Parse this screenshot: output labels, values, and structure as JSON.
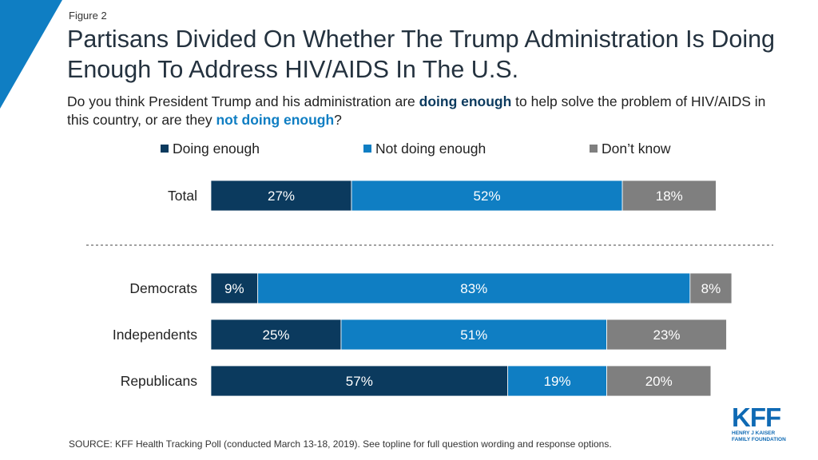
{
  "figure_label": "Figure 2",
  "subtitle": {
    "part1": "Do you think President Trump and his administration are ",
    "highlight1": "doing enough",
    "part2": " to help solve the problem of HIV/AIDS  in this country, or are they ",
    "highlight2": "not doing enough",
    "part3": "?"
  },
  "source": "SOURCE: KFF Health Tracking Poll (conducted March 13-18, 2019). See topline for full question wording and response options.",
  "logo": {
    "mark": "KFF",
    "sub": "HENRY J KAISER\nFAMILY FOUNDATION"
  },
  "colors": {
    "doing_enough": "#0b3a5e",
    "not_doing_enough": "#0f7ec3",
    "dont_know": "#7f7f7f",
    "accent": "#0f7ec3"
  },
  "chart_data": {
    "type": "bar",
    "orientation": "horizontal",
    "stacked": true,
    "title": "Partisans Divided On Whether The Trump Administration Is Doing Enough To Address HIV/AIDS In The U.S.",
    "categories": [
      "Total",
      "Democrats",
      "Independents",
      "Republicans"
    ],
    "series": [
      {
        "name": "Doing enough",
        "values": [
          27,
          9,
          25,
          57
        ],
        "labels": [
          "27%",
          "9%",
          "25%",
          "57%"
        ]
      },
      {
        "name": "Not doing enough",
        "values": [
          52,
          83,
          51,
          19
        ],
        "labels": [
          "52%",
          "83%",
          "51%",
          "19%"
        ]
      },
      {
        "name": "Don’t know",
        "values": [
          18,
          8,
          23,
          20
        ],
        "labels": [
          "18%",
          "8%",
          "23%",
          "20%"
        ]
      }
    ],
    "xlim": [
      0,
      100
    ],
    "legend": "top",
    "grid": false,
    "separator_after_category": "Total"
  }
}
